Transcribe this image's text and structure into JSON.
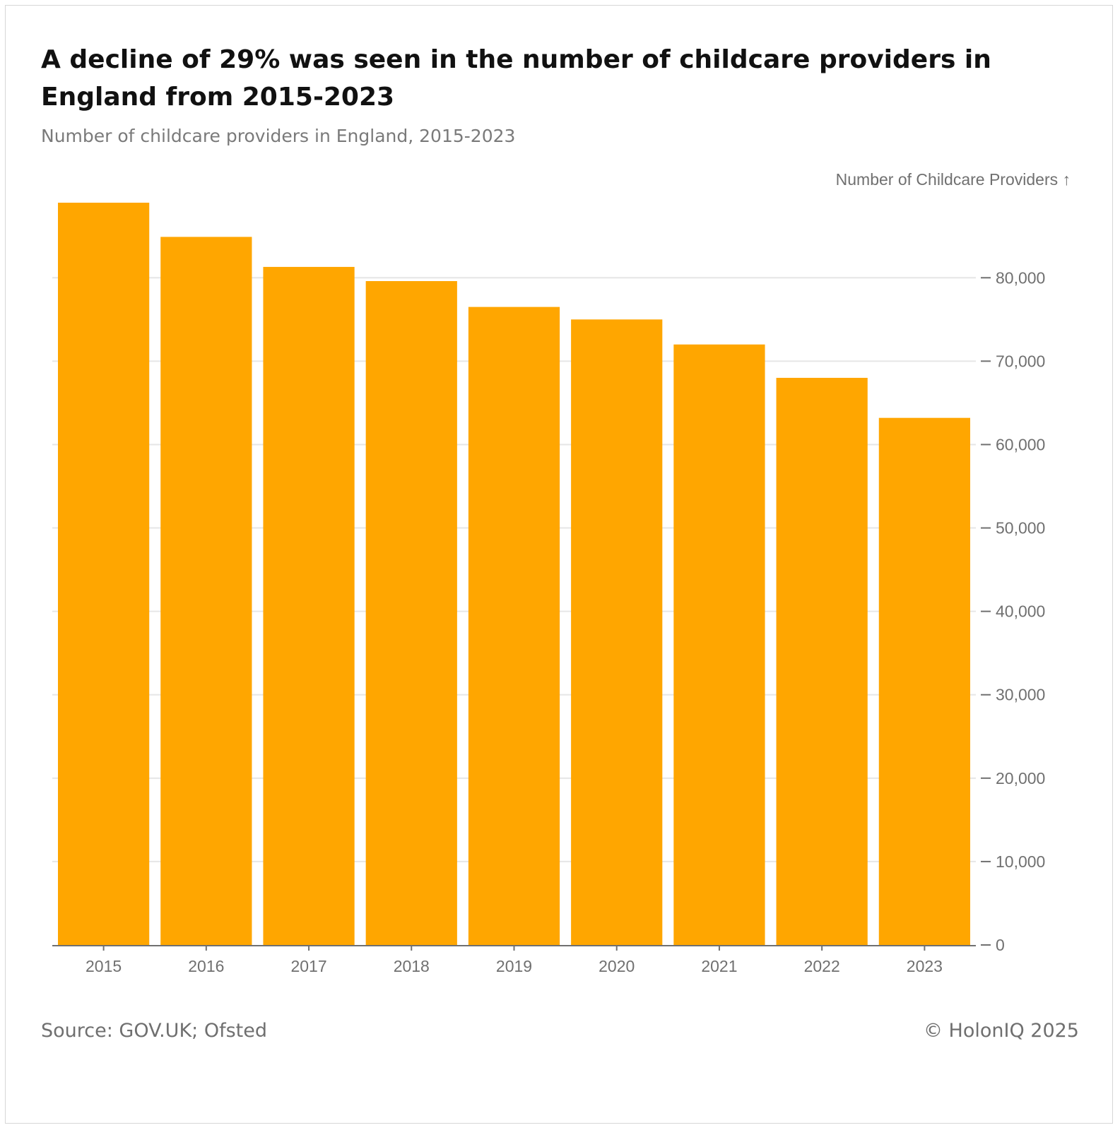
{
  "title": "A decline of 29% was seen in the number of childcare providers in England from 2015-2023",
  "subtitle": "Number of childcare providers in England, 2015-2023",
  "source": "Source: GOV.UK; Ofsted",
  "copyright": "© HolonIQ 2025",
  "colors": {
    "bar": "#FFA600",
    "grid": "#e6e6e6",
    "tick": "#707070"
  },
  "chart_data": {
    "type": "bar",
    "categories": [
      "2015",
      "2016",
      "2017",
      "2018",
      "2019",
      "2020",
      "2021",
      "2022",
      "2023"
    ],
    "values": [
      89000,
      84900,
      81300,
      79600,
      76500,
      75000,
      72000,
      68000,
      63200
    ],
    "ylabel": "Number of Childcare Providers ↑",
    "yticks": [
      0,
      10000,
      20000,
      30000,
      40000,
      50000,
      60000,
      70000,
      80000
    ],
    "ytick_labels": [
      "0",
      "10,000",
      "20,000",
      "30,000",
      "40,000",
      "50,000",
      "60,000",
      "70,000",
      "80,000"
    ],
    "ylim": [
      0,
      89000
    ],
    "grid": true,
    "y_axis_position": "right"
  }
}
